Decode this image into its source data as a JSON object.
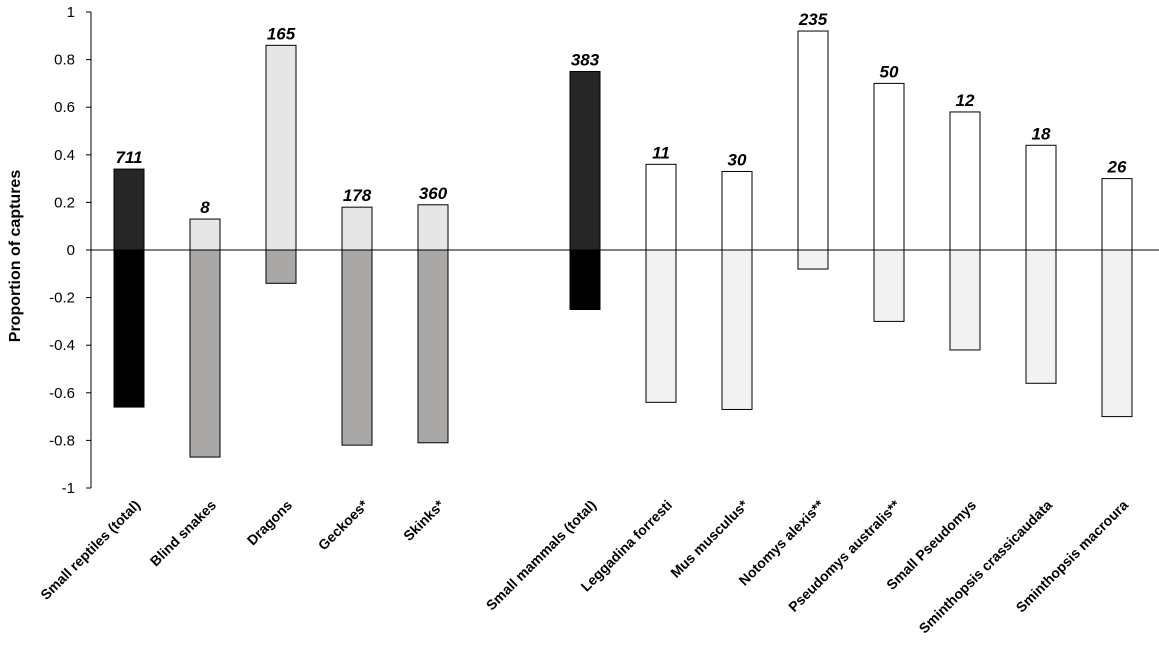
{
  "chart_data": {
    "type": "bar",
    "stacked_diverging": true,
    "ylabel": "Proportion of  captures",
    "ylim": [
      -1,
      1
    ],
    "yticks": [
      1,
      0.8,
      0.6,
      0.4,
      0.2,
      0,
      -0.2,
      -0.4,
      -0.6,
      -0.8,
      -1
    ],
    "yticks_labels": [
      "1",
      "0.8",
      "0.6",
      "0.4",
      "0.2",
      "0",
      "-0.2",
      "-0.4",
      "-0.6",
      "-0.8",
      "-1"
    ],
    "grid": false,
    "legend": "none",
    "groups": [
      {
        "categories": [
          "Small reptiles (total)",
          "Blind snakes",
          "Dragons",
          "Geckoes*",
          "Skinks*"
        ]
      },
      {
        "categories": [
          "Small mammals (total)",
          "Leggadina forresti",
          "Mus musculus*",
          "Notomys alexis**",
          "Pseudomys australis**",
          "Small Pseudomys",
          "Sminthopsis crassicaudata",
          "Sminthopsis macroura"
        ]
      }
    ],
    "categories": [
      "Small reptiles (total)",
      "Blind snakes",
      "Dragons",
      "Geckoes*",
      "Skinks*",
      "Small mammals (total)",
      "Leggadina forresti",
      "Mus musculus*",
      "Notomys alexis**",
      "Pseudomys australis**",
      "Small Pseudomys",
      "Sminthopsis crassicaudata",
      "Sminthopsis macroura"
    ],
    "series": [
      {
        "values": [
          0.34,
          0.13,
          0.86,
          0.18,
          0.19,
          0.75,
          0.36,
          0.33,
          0.92,
          0.7,
          0.58,
          0.44,
          0.3
        ]
      },
      {
        "values": [
          -0.66,
          -0.87,
          -0.14,
          -0.82,
          -0.81,
          -0.25,
          -0.64,
          -0.67,
          -0.08,
          -0.3,
          -0.42,
          -0.56,
          -0.7
        ]
      }
    ],
    "annotations": [
      "711",
      "8",
      "165",
      "178",
      "360",
      "383",
      "11",
      "30",
      "235",
      "50",
      "12",
      "18",
      "26"
    ],
    "colors": {
      "positive": [
        "#262626",
        "#e6e6e6",
        "#e6e6e6",
        "#e6e6e6",
        "#e6e6e6",
        "#262626",
        "#ffffff",
        "#ffffff",
        "#ffffff",
        "#ffffff",
        "#ffffff",
        "#ffffff",
        "#ffffff"
      ],
      "negative": [
        "#000000",
        "#aaa7a7",
        "#aaa7a7",
        "#aaa7a7",
        "#aaa7a7",
        "#000000",
        "#f2f2f2",
        "#f2f2f2",
        "#f2f2f2",
        "#f2f2f2",
        "#f2f2f2",
        "#f2f2f2",
        "#f2f2f2"
      ],
      "stroke": "#000000"
    }
  }
}
